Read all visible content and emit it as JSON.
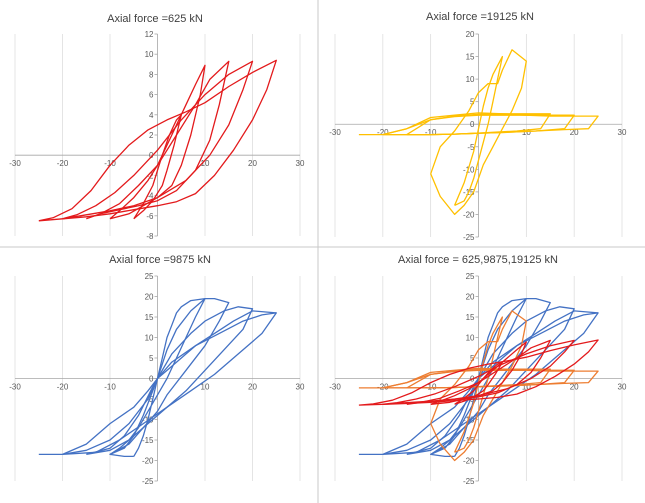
{
  "chart_data": [
    {
      "type": "line",
      "title": "Axial force =625 kN",
      "xlabel": "",
      "ylabel": "",
      "xlim": [
        -30,
        30
      ],
      "ylim": [
        -8,
        12
      ],
      "xticks": [
        -30,
        -20,
        -10,
        0,
        10,
        20,
        30
      ],
      "yticks": [
        -8,
        -6,
        -4,
        -2,
        0,
        2,
        4,
        6,
        8,
        10,
        12
      ],
      "grid": "vertical",
      "color": "#e31a1c",
      "series": [
        {
          "x": [
            -5,
            -3,
            -1,
            0,
            1,
            2.5,
            4,
            5,
            3.5,
            2,
            1,
            -1,
            -3,
            -5
          ],
          "y": [
            -6.3,
            -4.8,
            -3,
            -1.5,
            0,
            2,
            3.5,
            4,
            1,
            -1.5,
            -3,
            -4.5,
            -5.5,
            -6.3
          ]
        },
        {
          "x": [
            -10,
            -8,
            -5,
            -2,
            0,
            3,
            6,
            8,
            10,
            9,
            7,
            5,
            3,
            0,
            -3,
            -6,
            -10
          ],
          "y": [
            -6.3,
            -5.5,
            -4.2,
            -2.5,
            -1,
            2,
            5,
            7,
            8.9,
            6,
            2,
            -1,
            -3,
            -4.2,
            -5,
            -5.8,
            -6.3
          ]
        },
        {
          "x": [
            -15,
            -12,
            -8,
            -4,
            0,
            4,
            8,
            11,
            15,
            13,
            11,
            8,
            4,
            0,
            -4,
            -8,
            -12,
            -15
          ],
          "y": [
            -6.3,
            -5.8,
            -4.8,
            -3,
            -1,
            2,
            5,
            7.5,
            9.3,
            5,
            1.5,
            -1.5,
            -3.5,
            -4.5,
            -5,
            -5.4,
            -5.8,
            -6.3
          ]
        },
        {
          "x": [
            -20,
            -17,
            -13,
            -9,
            -5,
            0,
            5,
            10,
            15,
            20,
            18,
            15,
            11,
            6,
            0,
            -5,
            -10,
            -15,
            -20
          ],
          "y": [
            -6.3,
            -5.9,
            -5,
            -3.7,
            -2,
            0.5,
            3.5,
            6,
            8,
            9.3,
            6.5,
            3,
            0,
            -2.5,
            -4.2,
            -5,
            -5.5,
            -5.9,
            -6.3
          ]
        },
        {
          "x": [
            -25,
            -22,
            -18,
            -14,
            -10,
            -6,
            -2,
            2,
            6,
            10,
            15,
            20,
            25,
            23,
            20,
            16,
            12,
            8,
            4,
            0,
            -5,
            -10,
            -15,
            -20,
            -25
          ],
          "y": [
            -6.5,
            -6.2,
            -5.3,
            -3.5,
            -1,
            1,
            2.5,
            3.5,
            4.3,
            5.2,
            6.8,
            8.2,
            9.4,
            6.5,
            3.5,
            0.5,
            -2,
            -3.8,
            -4.6,
            -5,
            -5.4,
            -5.8,
            -6.1,
            -6.3,
            -6.5
          ]
        }
      ]
    },
    {
      "type": "line",
      "title": "Axial force =19125 kN",
      "xlabel": "",
      "ylabel": "",
      "xlim": [
        -30,
        30
      ],
      "ylim": [
        -25,
        20
      ],
      "xticks": [
        -30,
        -20,
        -10,
        0,
        10,
        20,
        30
      ],
      "yticks": [
        -25,
        -20,
        -15,
        -10,
        -5,
        0,
        5,
        10,
        15,
        20
      ],
      "grid": "vertical",
      "color": "#ffc000",
      "series": [
        {
          "x": [
            -5,
            -3,
            -1,
            0,
            1,
            2,
            3,
            4,
            5,
            4,
            3,
            2,
            1,
            0,
            -1,
            -2,
            -3,
            -5
          ],
          "y": [
            -18,
            -13,
            -6,
            -1,
            4,
            8,
            11,
            13,
            15,
            10,
            5,
            0,
            -4,
            -8,
            -12,
            -15,
            -17,
            -18
          ]
        },
        {
          "x": [
            -10,
            -8,
            -5,
            -2,
            0,
            2,
            4,
            5,
            7,
            10,
            9,
            7,
            5,
            3,
            1,
            0,
            -1,
            -3,
            -5,
            -8,
            -10
          ],
          "y": [
            -11,
            -5,
            -1.5,
            3,
            7,
            9,
            9,
            12,
            16.5,
            14,
            8,
            3,
            -1,
            -5,
            -9,
            -12,
            -15,
            -18,
            -20,
            -16,
            -11
          ]
        },
        {
          "x": [
            -25,
            -20,
            -15,
            -10,
            -5,
            0,
            5,
            10,
            15,
            20,
            25,
            23,
            18,
            12,
            6,
            0,
            -5,
            -10,
            -15,
            -20,
            -25
          ],
          "y": [
            -2.3,
            -2.3,
            -1,
            1.5,
            2,
            2.5,
            2.3,
            2,
            1.8,
            1.8,
            1.8,
            -1,
            -1.2,
            -1.5,
            -1.8,
            -2,
            -2.2,
            -2.3,
            -2.3,
            -2.3,
            -2.3
          ]
        },
        {
          "x": [
            -20,
            -15,
            -10,
            -5,
            0,
            5,
            10,
            15,
            20,
            18,
            12,
            6,
            0,
            -5,
            -10,
            -15,
            -20
          ],
          "y": [
            -2.3,
            -1,
            1,
            1.7,
            2,
            2,
            2,
            2,
            2,
            -1,
            -1.5,
            -1.8,
            -2,
            -2.2,
            -2.3,
            -2.3,
            -2.3
          ]
        },
        {
          "x": [
            -15,
            -10,
            -5,
            0,
            5,
            10,
            15,
            13,
            8,
            3,
            0,
            -5,
            -10,
            -15
          ],
          "y": [
            -2.3,
            1,
            1.8,
            2.2,
            2.3,
            2.3,
            2.3,
            -1,
            -1.5,
            -1.8,
            -2,
            -2.2,
            -2.3,
            -2.3
          ]
        }
      ]
    },
    {
      "type": "line",
      "title": "Axial force =9875 kN",
      "xlabel": "",
      "ylabel": "",
      "xlim": [
        -30,
        30
      ],
      "ylim": [
        -25,
        25
      ],
      "xticks": [
        -30,
        -20,
        -10,
        0,
        10,
        20,
        30
      ],
      "yticks": [
        -25,
        -20,
        -15,
        -10,
        -5,
        0,
        5,
        10,
        15,
        20,
        25
      ],
      "grid": "vertical",
      "color": "#4472c4",
      "series": [
        {
          "x": [
            -5,
            -4,
            -3,
            -2,
            -1,
            0,
            1,
            2,
            3,
            4,
            5,
            7,
            10,
            8,
            6,
            4,
            2,
            0,
            -2,
            -4,
            -6,
            -8,
            -10,
            -7,
            -5
          ],
          "y": [
            -19,
            -17,
            -14,
            -10,
            -5,
            0,
            5,
            10,
            13,
            16,
            17.5,
            19,
            19.5,
            15,
            10,
            5,
            0,
            -4,
            -8,
            -12,
            -15,
            -17,
            -18.5,
            -19,
            -19
          ]
        },
        {
          "x": [
            -10,
            -7,
            -5,
            -3,
            -1,
            0,
            2,
            4,
            7,
            10,
            12,
            15,
            13,
            10,
            6,
            2,
            0,
            -3,
            -6,
            -10
          ],
          "y": [
            -18.5,
            -17,
            -14,
            -9,
            -3,
            0,
            7,
            12,
            16.5,
            19.5,
            19.5,
            18.5,
            14,
            8,
            2,
            -4,
            -8,
            -12,
            -16,
            -18.5
          ]
        },
        {
          "x": [
            -15,
            -10,
            -7,
            -4,
            -1,
            0,
            3,
            7,
            10,
            14,
            17,
            20,
            18,
            14,
            10,
            6,
            2,
            -2,
            -6,
            -10,
            -15
          ],
          "y": [
            -18.5,
            -17,
            -14,
            -9,
            -2,
            0,
            6,
            11,
            14,
            16.5,
            17.5,
            17,
            12,
            7,
            2,
            -3,
            -7,
            -11,
            -15,
            -17.5,
            -18.5
          ]
        },
        {
          "x": [
            -20,
            -15,
            -10,
            -6,
            -2,
            0,
            3,
            8,
            12,
            16,
            20,
            25,
            22,
            17,
            12,
            7,
            2,
            -3,
            -8,
            -13,
            -20
          ],
          "y": [
            -18.5,
            -17.5,
            -15,
            -11,
            -5,
            0,
            4,
            8,
            11,
            14,
            16.5,
            16,
            11,
            6,
            1,
            -3,
            -7,
            -11,
            -15,
            -18,
            -18.5
          ]
        },
        {
          "x": [
            -25,
            -20,
            -15,
            -10,
            -5,
            -2,
            0,
            3,
            8,
            13,
            18,
            22,
            25
          ],
          "y": [
            -18.5,
            -18.5,
            -16,
            -11,
            -7,
            -3,
            0,
            3,
            8,
            11,
            14,
            15.5,
            16
          ]
        }
      ]
    },
    {
      "type": "line",
      "title": "Axial force = 625,9875,19125 kN",
      "xlabel": "",
      "ylabel": "",
      "xlim": [
        -30,
        30
      ],
      "ylim": [
        -25,
        25
      ],
      "xticks": [
        -30,
        -20,
        -10,
        0,
        10,
        20,
        30
      ],
      "yticks": [
        -25,
        -20,
        -15,
        -10,
        -5,
        0,
        5,
        10,
        15,
        20,
        25
      ],
      "grid": "vertical",
      "overlay": [
        {
          "color": "#4472c4",
          "from_panel": 2
        },
        {
          "color": "#ed7d31",
          "from_panel": 1
        },
        {
          "color": "#e31a1c",
          "from_panel": 0
        }
      ]
    }
  ]
}
